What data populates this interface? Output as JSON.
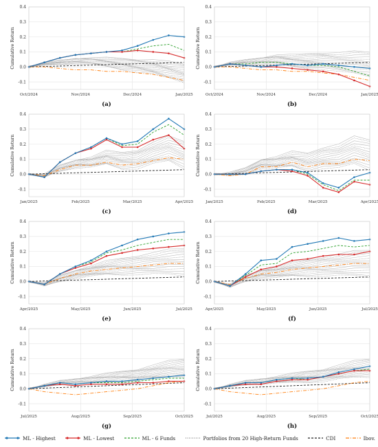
{
  "figure": {
    "panel_labels": [
      "(a)",
      "(b)",
      "(c)",
      "(d)",
      "(e)",
      "(f)",
      "(g)",
      "(h)"
    ]
  },
  "legend": [
    {
      "key": "ml_highest",
      "label": "ML - Highest",
      "color": "#1f77b4",
      "style": "solid-marker"
    },
    {
      "key": "ml_lowest",
      "label": "ML - Lowest",
      "color": "#d62728",
      "style": "solid-marker"
    },
    {
      "key": "ml_6funds",
      "label": "ML - 6 Funds",
      "color": "#2ca02c",
      "style": "dashed"
    },
    {
      "key": "portfolios",
      "label": "Portfolios from 20 High-Return Funds",
      "color": "#888888",
      "style": "dotted"
    },
    {
      "key": "cdi",
      "label": "CDI",
      "color": "#222222",
      "style": "dashed"
    },
    {
      "key": "ibov",
      "label": "Ibov.",
      "color": "#ff7f0e",
      "style": "dashdot"
    }
  ],
  "chart_data": [
    {
      "panel": "(a)",
      "type": "line",
      "ylabel": "Cumulative Return",
      "ylim": [
        -0.15,
        0.4
      ],
      "yticks": [
        -0.1,
        0.0,
        0.1,
        0.2,
        0.3,
        0.4
      ],
      "xticks": [
        "Oct/2024",
        "Nov/2024",
        "Dec/2024",
        "Jan/2025"
      ],
      "grid": true,
      "x": [
        0,
        0.1,
        0.2,
        0.3,
        0.4,
        0.5,
        0.6,
        0.7,
        0.8,
        0.9,
        1.0
      ],
      "series": [
        {
          "name": "ML - Highest",
          "values": [
            0,
            0.03,
            0.06,
            0.08,
            0.09,
            0.1,
            0.11,
            0.14,
            0.18,
            0.21,
            0.2
          ]
        },
        {
          "name": "ML - Lowest",
          "values": [
            0,
            0.03,
            0.06,
            0.08,
            0.09,
            0.1,
            0.1,
            0.11,
            0.1,
            0.09,
            0.06
          ]
        },
        {
          "name": "ML - 6 Funds",
          "values": [
            0,
            0.03,
            0.06,
            0.08,
            0.09,
            0.1,
            0.1,
            0.12,
            0.14,
            0.15,
            0.11
          ]
        },
        {
          "name": "CDI",
          "values": [
            0,
            0.003,
            0.006,
            0.009,
            0.012,
            0.015,
            0.018,
            0.021,
            0.024,
            0.027,
            0.03
          ]
        },
        {
          "name": "Ibov.",
          "values": [
            0,
            0.0,
            -0.01,
            -0.02,
            -0.02,
            -0.03,
            -0.03,
            -0.04,
            -0.05,
            -0.07,
            -0.09
          ]
        }
      ],
      "portfolio_band": {
        "values": [
          0,
          0.02,
          0.03,
          0.04,
          0.04,
          0.03,
          0.02,
          0.01,
          0.0,
          -0.02,
          -0.04
        ],
        "spread": 0.06
      }
    },
    {
      "panel": "(b)",
      "type": "line",
      "ylabel": "Cumulative Return",
      "ylim": [
        -0.15,
        0.4
      ],
      "yticks": [
        -0.1,
        0.0,
        0.1,
        0.2,
        0.3,
        0.4
      ],
      "xticks": [
        "Oct/2024",
        "Nov/2024",
        "Dec/2024",
        "Jan/2025"
      ],
      "grid": true,
      "x": [
        0,
        0.1,
        0.2,
        0.3,
        0.4,
        0.5,
        0.6,
        0.7,
        0.8,
        0.9,
        1.0
      ],
      "series": [
        {
          "name": "ML - Highest",
          "values": [
            0,
            0.02,
            0.01,
            0.0,
            0.01,
            0.02,
            0.01,
            0.02,
            0.01,
            0.0,
            -0.01
          ]
        },
        {
          "name": "ML - Lowest",
          "values": [
            0,
            0.02,
            0.01,
            0.0,
            0.0,
            -0.01,
            -0.02,
            -0.03,
            -0.05,
            -0.09,
            -0.13
          ]
        },
        {
          "name": "ML - 6 Funds",
          "values": [
            0,
            0.02,
            0.02,
            0.03,
            0.03,
            0.02,
            0.01,
            0.01,
            0.0,
            -0.03,
            -0.06
          ]
        },
        {
          "name": "CDI",
          "values": [
            0,
            0.003,
            0.006,
            0.009,
            0.012,
            0.015,
            0.018,
            0.021,
            0.024,
            0.027,
            0.03
          ]
        },
        {
          "name": "Ibov.",
          "values": [
            0,
            0.0,
            -0.01,
            -0.02,
            -0.02,
            -0.03,
            -0.03,
            -0.04,
            -0.05,
            -0.07,
            -0.09
          ]
        }
      ],
      "portfolio_band": {
        "values": [
          0,
          0.02,
          0.03,
          0.04,
          0.05,
          0.04,
          0.04,
          0.04,
          0.03,
          0.03,
          0.02
        ],
        "spread": 0.08
      }
    },
    {
      "panel": "(c)",
      "type": "line",
      "ylabel": "Cumulative Return",
      "ylim": [
        -0.15,
        0.4
      ],
      "yticks": [
        -0.1,
        0.0,
        0.1,
        0.2,
        0.3,
        0.4
      ],
      "xticks": [
        "Jan/2025",
        "Feb/2025",
        "Mar/2025",
        "Apr/2025"
      ],
      "grid": true,
      "x": [
        0,
        0.1,
        0.2,
        0.3,
        0.4,
        0.5,
        0.6,
        0.7,
        0.8,
        0.9,
        1.0
      ],
      "series": [
        {
          "name": "ML - Highest",
          "values": [
            0,
            -0.02,
            0.08,
            0.14,
            0.18,
            0.24,
            0.2,
            0.22,
            0.3,
            0.37,
            0.3
          ]
        },
        {
          "name": "ML - Lowest",
          "values": [
            0,
            -0.02,
            0.08,
            0.14,
            0.17,
            0.23,
            0.18,
            0.18,
            0.23,
            0.26,
            0.17
          ]
        },
        {
          "name": "ML - 6 Funds",
          "values": [
            0,
            -0.02,
            0.08,
            0.14,
            0.18,
            0.24,
            0.19,
            0.2,
            0.28,
            0.33,
            0.26
          ]
        },
        {
          "name": "CDI",
          "values": [
            0,
            0.003,
            0.006,
            0.009,
            0.012,
            0.015,
            0.018,
            0.021,
            0.024,
            0.027,
            0.03
          ]
        },
        {
          "name": "Ibov.",
          "values": [
            0,
            -0.01,
            0.03,
            0.06,
            0.06,
            0.08,
            0.06,
            0.07,
            0.09,
            0.11,
            0.1
          ]
        }
      ],
      "portfolio_band": {
        "values": [
          0,
          -0.01,
          0.04,
          0.07,
          0.08,
          0.11,
          0.09,
          0.1,
          0.14,
          0.17,
          0.13
        ],
        "spread": 0.09
      }
    },
    {
      "panel": "(d)",
      "type": "line",
      "ylabel": "Cumulative Return",
      "ylim": [
        -0.15,
        0.4
      ],
      "yticks": [
        -0.1,
        0.0,
        0.1,
        0.2,
        0.3,
        0.4
      ],
      "xticks": [
        "Jan/2025",
        "Feb/2025",
        "Mar/2025",
        "Apr/2025"
      ],
      "grid": true,
      "x": [
        0,
        0.1,
        0.2,
        0.3,
        0.4,
        0.5,
        0.6,
        0.7,
        0.8,
        0.9,
        1.0
      ],
      "series": [
        {
          "name": "ML - Highest",
          "values": [
            0,
            0.0,
            0.0,
            0.02,
            0.03,
            0.03,
            0.01,
            -0.06,
            -0.09,
            -0.02,
            0.01
          ]
        },
        {
          "name": "ML - Lowest",
          "values": [
            0,
            0.0,
            0.0,
            0.02,
            0.03,
            0.02,
            -0.01,
            -0.09,
            -0.12,
            -0.05,
            -0.07
          ]
        },
        {
          "name": "ML - 6 Funds",
          "values": [
            0,
            0.0,
            0.0,
            0.02,
            0.03,
            0.03,
            0.0,
            -0.07,
            -0.11,
            -0.04,
            -0.04
          ]
        },
        {
          "name": "CDI",
          "values": [
            0,
            0.003,
            0.006,
            0.009,
            0.012,
            0.015,
            0.018,
            0.021,
            0.024,
            0.027,
            0.03
          ]
        },
        {
          "name": "Ibov.",
          "values": [
            0,
            -0.01,
            0.0,
            0.05,
            0.05,
            0.08,
            0.05,
            0.07,
            0.07,
            0.1,
            0.09
          ]
        }
      ],
      "portfolio_band": {
        "values": [
          0,
          0.0,
          0.02,
          0.07,
          0.08,
          0.1,
          0.08,
          0.11,
          0.12,
          0.16,
          0.13
        ],
        "spread": 0.1
      }
    },
    {
      "panel": "(e)",
      "type": "line",
      "ylabel": "Cumulative Return",
      "ylim": [
        -0.15,
        0.4
      ],
      "yticks": [
        -0.1,
        0.0,
        0.1,
        0.2,
        0.3,
        0.4
      ],
      "xticks": [
        "Apr/2025",
        "May/2025",
        "Jun/2025",
        "Jul/2025"
      ],
      "grid": true,
      "x": [
        0,
        0.1,
        0.2,
        0.3,
        0.4,
        0.5,
        0.6,
        0.7,
        0.8,
        0.9,
        1.0
      ],
      "series": [
        {
          "name": "ML - Highest",
          "values": [
            0,
            -0.02,
            0.05,
            0.1,
            0.14,
            0.2,
            0.24,
            0.28,
            0.3,
            0.32,
            0.33
          ]
        },
        {
          "name": "ML - Lowest",
          "values": [
            0,
            -0.02,
            0.05,
            0.09,
            0.12,
            0.17,
            0.19,
            0.21,
            0.22,
            0.23,
            0.24
          ]
        },
        {
          "name": "ML - 6 Funds",
          "values": [
            0,
            -0.02,
            0.05,
            0.1,
            0.13,
            0.19,
            0.21,
            0.24,
            0.26,
            0.28,
            0.28
          ]
        },
        {
          "name": "CDI",
          "values": [
            0,
            0.003,
            0.006,
            0.009,
            0.012,
            0.015,
            0.018,
            0.021,
            0.024,
            0.027,
            0.03
          ]
        },
        {
          "name": "Ibov.",
          "values": [
            0,
            -0.02,
            0.02,
            0.05,
            0.07,
            0.08,
            0.09,
            0.1,
            0.11,
            0.12,
            0.12
          ]
        }
      ],
      "portfolio_band": {
        "values": [
          0,
          -0.02,
          0.02,
          0.05,
          0.07,
          0.09,
          0.1,
          0.11,
          0.12,
          0.13,
          0.13
        ],
        "spread": 0.09
      }
    },
    {
      "panel": "(f)",
      "type": "line",
      "ylabel": "Cumulative Return",
      "ylim": [
        -0.15,
        0.4
      ],
      "yticks": [
        -0.1,
        0.0,
        0.1,
        0.2,
        0.3,
        0.4
      ],
      "xticks": [
        "Apr/2025",
        "May/2025",
        "Jun/2025",
        "Jul/2025"
      ],
      "grid": true,
      "x": [
        0,
        0.1,
        0.2,
        0.3,
        0.4,
        0.5,
        0.6,
        0.7,
        0.8,
        0.9,
        1.0
      ],
      "series": [
        {
          "name": "ML - Highest",
          "values": [
            0,
            -0.03,
            0.05,
            0.14,
            0.15,
            0.23,
            0.25,
            0.27,
            0.29,
            0.27,
            0.28
          ]
        },
        {
          "name": "ML - Lowest",
          "values": [
            0,
            -0.03,
            0.03,
            0.08,
            0.1,
            0.14,
            0.15,
            0.17,
            0.18,
            0.18,
            0.2
          ]
        },
        {
          "name": "ML - 6 Funds",
          "values": [
            0,
            -0.03,
            0.04,
            0.11,
            0.12,
            0.19,
            0.2,
            0.22,
            0.24,
            0.23,
            0.24
          ]
        },
        {
          "name": "CDI",
          "values": [
            0,
            0.003,
            0.006,
            0.009,
            0.012,
            0.015,
            0.018,
            0.021,
            0.024,
            0.027,
            0.03
          ]
        },
        {
          "name": "Ibov.",
          "values": [
            0,
            -0.02,
            0.02,
            0.05,
            0.06,
            0.08,
            0.09,
            0.1,
            0.11,
            0.12,
            0.12
          ]
        }
      ],
      "portfolio_band": {
        "values": [
          0,
          -0.03,
          0.02,
          0.05,
          0.06,
          0.08,
          0.09,
          0.1,
          0.11,
          0.12,
          0.12
        ],
        "spread": 0.09
      }
    },
    {
      "panel": "(g)",
      "type": "line",
      "ylabel": "Cumulative Return",
      "ylim": [
        -0.15,
        0.4
      ],
      "yticks": [
        -0.1,
        0.0,
        0.1,
        0.2,
        0.3,
        0.4
      ],
      "xticks": [
        "Jul/2025",
        "Aug/2025",
        "Sep/2025",
        "Oct/2025"
      ],
      "grid": true,
      "x": [
        0,
        0.1,
        0.2,
        0.3,
        0.4,
        0.5,
        0.6,
        0.7,
        0.8,
        0.9,
        1.0
      ],
      "series": [
        {
          "name": "ML - Highest",
          "values": [
            0,
            0.02,
            0.04,
            0.03,
            0.04,
            0.05,
            0.05,
            0.06,
            0.07,
            0.08,
            0.09
          ]
        },
        {
          "name": "ML - Lowest",
          "values": [
            0,
            0.02,
            0.03,
            0.02,
            0.03,
            0.03,
            0.03,
            0.04,
            0.04,
            0.05,
            0.05
          ]
        },
        {
          "name": "ML - 6 Funds",
          "values": [
            0,
            0.02,
            0.04,
            0.03,
            0.04,
            0.04,
            0.04,
            0.05,
            0.06,
            0.07,
            0.07
          ]
        },
        {
          "name": "CDI",
          "values": [
            0,
            0.004,
            0.008,
            0.012,
            0.016,
            0.02,
            0.024,
            0.028,
            0.032,
            0.036,
            0.04
          ]
        },
        {
          "name": "Ibov.",
          "values": [
            0,
            -0.02,
            -0.03,
            -0.04,
            -0.03,
            -0.02,
            -0.01,
            0.0,
            0.02,
            0.04,
            0.05
          ]
        }
      ],
      "portfolio_band": {
        "values": [
          0,
          0.02,
          0.04,
          0.05,
          0.06,
          0.07,
          0.08,
          0.09,
          0.11,
          0.13,
          0.14
        ],
        "spread": 0.06
      }
    },
    {
      "panel": "(h)",
      "type": "line",
      "ylabel": "Cumulative Return",
      "ylim": [
        -0.15,
        0.4
      ],
      "yticks": [
        -0.1,
        0.0,
        0.1,
        0.2,
        0.3,
        0.4
      ],
      "xticks": [
        "Jul/2025",
        "Aug/2025",
        "Sep/2025",
        "Oct/2025"
      ],
      "grid": true,
      "x": [
        0,
        0.1,
        0.2,
        0.3,
        0.4,
        0.5,
        0.6,
        0.7,
        0.8,
        0.9,
        1.0
      ],
      "series": [
        {
          "name": "ML - Highest",
          "values": [
            0,
            0.02,
            0.04,
            0.04,
            0.06,
            0.07,
            0.07,
            0.08,
            0.11,
            0.13,
            0.15
          ]
        },
        {
          "name": "ML - Lowest",
          "values": [
            0,
            0.02,
            0.03,
            0.03,
            0.05,
            0.06,
            0.06,
            0.08,
            0.1,
            0.12,
            0.12
          ]
        },
        {
          "name": "ML - 6 Funds",
          "values": [
            0,
            0.02,
            0.04,
            0.04,
            0.06,
            0.07,
            0.06,
            0.08,
            0.1,
            0.12,
            0.13
          ]
        },
        {
          "name": "CDI",
          "values": [
            0,
            0.004,
            0.008,
            0.012,
            0.016,
            0.02,
            0.024,
            0.028,
            0.032,
            0.036,
            0.04
          ]
        },
        {
          "name": "Ibov.",
          "values": [
            0,
            -0.02,
            -0.03,
            -0.04,
            -0.03,
            -0.02,
            -0.01,
            0.0,
            0.02,
            0.04,
            0.05
          ]
        }
      ],
      "portfolio_band": {
        "values": [
          0,
          0.02,
          0.04,
          0.05,
          0.06,
          0.07,
          0.08,
          0.09,
          0.11,
          0.13,
          0.14
        ],
        "spread": 0.06
      }
    }
  ]
}
